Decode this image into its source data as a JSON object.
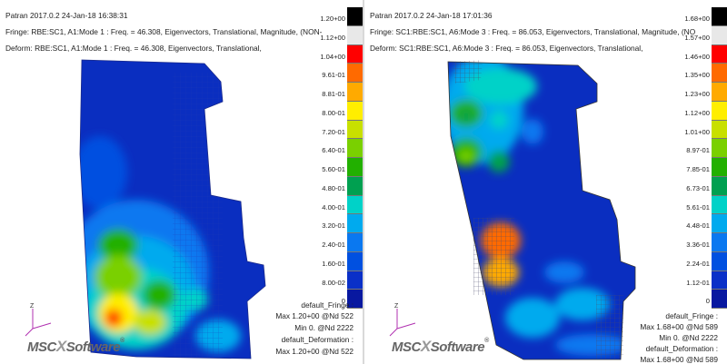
{
  "left": {
    "header": {
      "line1": "Patran 2017.0.2 24-Jan-18 16:38:31",
      "line2": "Fringe: RBE:SC1, A1:Mode 1 : Freq. = 46.308, Eigenvectors, Translational, Magnitude, (NON-",
      "line3": "Deform: RBE:SC1, A1:Mode 1 : Freq. = 46.308, Eigenvectors, Translational,"
    },
    "legend_ticks": [
      "1.20+00",
      "1.12+00",
      "1.04+00",
      "9.61-01",
      "8.81-01",
      "8.00-01",
      "7.20-01",
      "6.40-01",
      "5.60-01",
      "4.80-01",
      "4.00-01",
      "3.20-01",
      "2.40-01",
      "1.60-01",
      "8.00-02",
      "0"
    ],
    "info": {
      "fringe_label": "default_Fringe :",
      "fringe_max": "Max 1.20+00 @Nd 522",
      "fringe_min": "Min 0. @Nd 2222",
      "deform_label": "default_Deformation :",
      "deform_max": "Max 1.20+00 @Nd 522"
    }
  },
  "right": {
    "header": {
      "line1": "Patran 2017.0.2 24-Jan-18 17:01:36",
      "line2": "Fringe: SC1:RBE:SC1, A6:Mode 3 : Freq. = 86.053, Eigenvectors, Translational, Magnitude, (NO",
      "line3": "Deform: SC1:RBE:SC1, A6:Mode 3 : Freq. = 86.053, Eigenvectors, Translational,"
    },
    "legend_ticks": [
      "1.68+00",
      "1.57+00",
      "1.46+00",
      "1.35+00",
      "1.23+00",
      "1.12+00",
      "1.01+00",
      "8.97-01",
      "7.85-01",
      "6.73-01",
      "5.61-01",
      "4.48-01",
      "3.36-01",
      "2.24-01",
      "1.12-01",
      "0"
    ],
    "info": {
      "fringe_label": "default_Fringe :",
      "fringe_max": "Max 1.68+00 @Nd 589",
      "fringe_min": "Min 0. @Nd 2222",
      "deform_label": "default_Deformation :",
      "deform_max": "Max 1.68+00 @Nd 589"
    }
  },
  "legend_colors": [
    "#000000",
    "#e8e8e8",
    "#ff0000",
    "#ff6a00",
    "#ffaa00",
    "#ffee00",
    "#c8e000",
    "#7ad000",
    "#22b000",
    "#00a050",
    "#00d2c8",
    "#00aaee",
    "#0a78f0",
    "#0050e0",
    "#0a30c8",
    "#0818a0"
  ],
  "logo": {
    "brand_a": "MSC",
    "brand_b": "Software",
    "tm": "®"
  },
  "axis_label": "Z"
}
